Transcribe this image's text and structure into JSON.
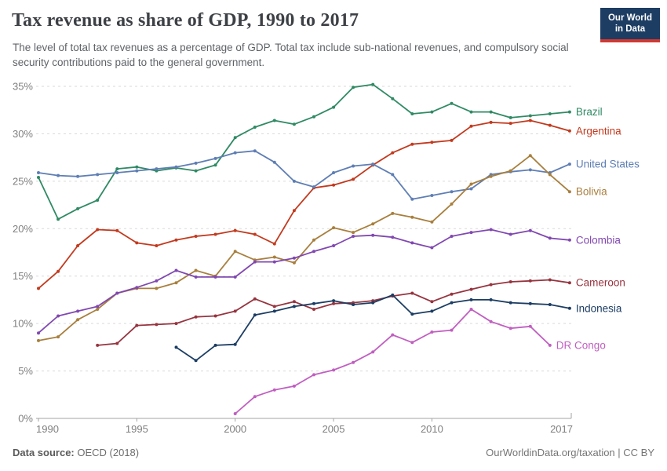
{
  "logo": {
    "line1": "Our World",
    "line2": "in Data"
  },
  "footer": {
    "source_label": "Data source:",
    "source_value": " OECD (2018)",
    "credit": "OurWorldinData.org/taxation | CC BY"
  },
  "chart_data": {
    "type": "line",
    "title": "Tax revenue as share of GDP, 1990 to 2017",
    "subtitle": "The level of total tax revenues as a percentage of GDP. Total tax include sub-national revenues, and compulsory social security contributions paid to the general government.",
    "xlabel": "",
    "ylabel": "",
    "xlim": [
      1990,
      2017
    ],
    "ylim": [
      0,
      35
    ],
    "grid": true,
    "grid_style": "dashed-horizontal",
    "legend_position": "labels-at-line-ends",
    "x": [
      1990,
      1991,
      1992,
      1993,
      1994,
      1995,
      1996,
      1997,
      1998,
      1999,
      2000,
      2001,
      2002,
      2003,
      2004,
      2005,
      2006,
      2007,
      2008,
      2009,
      2010,
      2011,
      2012,
      2013,
      2014,
      2015,
      2016,
      2017
    ],
    "x_ticks": [
      {
        "value": 1990,
        "label": "1990"
      },
      {
        "value": 1995,
        "label": "1995"
      },
      {
        "value": 2000,
        "label": "2000"
      },
      {
        "value": 2005,
        "label": "2005"
      },
      {
        "value": 2010,
        "label": "2010"
      },
      {
        "value": 2017,
        "label": "2017"
      }
    ],
    "y_ticks": [
      {
        "value": 0,
        "label": "0%"
      },
      {
        "value": 5,
        "label": "5%"
      },
      {
        "value": 10,
        "label": "10%"
      },
      {
        "value": 15,
        "label": "15%"
      },
      {
        "value": 20,
        "label": "20%"
      },
      {
        "value": 25,
        "label": "25%"
      },
      {
        "value": 30,
        "label": "30%"
      },
      {
        "value": 35,
        "label": "35%"
      }
    ],
    "series": [
      {
        "name": "Brazil",
        "color": "#2f8a64",
        "values": [
          25.4,
          21.0,
          22.1,
          23.0,
          26.3,
          26.5,
          26.1,
          26.4,
          26.1,
          26.7,
          29.6,
          30.7,
          31.4,
          31.0,
          31.8,
          32.8,
          34.9,
          35.2,
          33.7,
          32.1,
          32.3,
          33.2,
          32.3,
          32.3,
          31.7,
          31.9,
          32.1,
          32.3
        ]
      },
      {
        "name": "Argentina",
        "color": "#c23a1e",
        "values": [
          13.7,
          15.5,
          18.2,
          19.9,
          19.8,
          18.5,
          18.2,
          18.8,
          19.2,
          19.4,
          19.8,
          19.4,
          18.4,
          21.9,
          24.3,
          24.6,
          25.2,
          26.7,
          28.0,
          28.9,
          29.1,
          29.3,
          30.8,
          31.2,
          31.1,
          31.4,
          30.9,
          30.3
        ]
      },
      {
        "name": "United States",
        "color": "#5e7eb4",
        "values": [
          25.9,
          25.6,
          25.5,
          25.7,
          25.9,
          26.1,
          26.3,
          26.5,
          26.9,
          27.4,
          28.0,
          28.2,
          27.0,
          25.0,
          24.4,
          25.9,
          26.6,
          26.8,
          25.7,
          23.1,
          23.5,
          23.9,
          24.2,
          25.7,
          26.0,
          26.2,
          25.9,
          26.8
        ]
      },
      {
        "name": "Bolivia",
        "color": "#a87f3d",
        "values": [
          8.2,
          8.6,
          10.4,
          11.5,
          13.2,
          13.7,
          13.7,
          14.3,
          15.6,
          15.0,
          17.6,
          16.7,
          17.0,
          16.4,
          18.8,
          20.1,
          19.6,
          20.5,
          21.6,
          21.2,
          20.7,
          22.6,
          24.7,
          25.5,
          26.1,
          27.7,
          25.7,
          23.9
        ]
      },
      {
        "name": "Colombia",
        "color": "#8048b0",
        "values": [
          9.0,
          10.8,
          11.3,
          11.8,
          13.2,
          13.8,
          14.5,
          15.6,
          14.9,
          14.9,
          14.9,
          16.5,
          16.5,
          16.9,
          17.6,
          18.2,
          19.2,
          19.3,
          19.1,
          18.5,
          18.0,
          19.2,
          19.6,
          19.9,
          19.4,
          19.8,
          19.0,
          18.8
        ]
      },
      {
        "name": "Cameroon",
        "color": "#96343f",
        "values": [
          null,
          null,
          null,
          7.7,
          7.9,
          9.8,
          9.9,
          10.0,
          10.7,
          10.8,
          11.3,
          12.6,
          11.8,
          12.3,
          11.5,
          12.1,
          12.2,
          12.4,
          12.9,
          13.2,
          12.3,
          13.1,
          13.6,
          14.1,
          14.4,
          14.5,
          14.6,
          14.3
        ]
      },
      {
        "name": "Indonesia",
        "color": "#1c3d63",
        "values": [
          null,
          null,
          null,
          null,
          null,
          null,
          null,
          7.5,
          6.1,
          7.7,
          7.8,
          10.9,
          11.3,
          11.8,
          12.1,
          12.4,
          12.0,
          12.2,
          13.0,
          11.0,
          11.3,
          12.2,
          12.5,
          12.5,
          12.2,
          12.1,
          12.0,
          11.6
        ]
      },
      {
        "name": "DR Congo",
        "color": "#c05fc0",
        "values": [
          null,
          null,
          null,
          null,
          null,
          null,
          null,
          null,
          null,
          null,
          0.5,
          2.3,
          3.0,
          3.4,
          4.6,
          5.1,
          5.9,
          7.0,
          8.8,
          8.0,
          9.1,
          9.3,
          11.5,
          10.2,
          9.5,
          9.7,
          7.7,
          null
        ]
      }
    ]
  }
}
